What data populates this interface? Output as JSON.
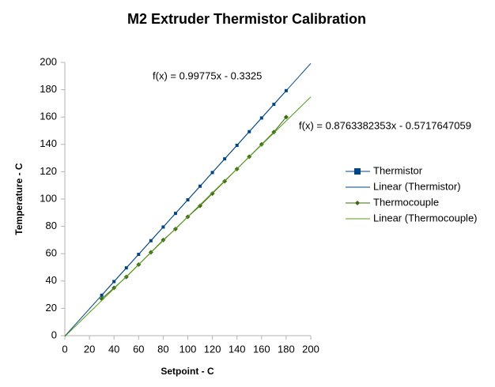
{
  "chart_data": {
    "type": "line",
    "title": "M2 Extruder Thermistor Calibration",
    "x_label": "Setpoint - C",
    "y_label": "Temperature - C",
    "xlim": [
      0,
      200
    ],
    "xticks": [
      0,
      20,
      40,
      60,
      80,
      100,
      120,
      140,
      160,
      180,
      200
    ],
    "ylim": [
      0,
      200
    ],
    "yticks": [
      0,
      20,
      40,
      60,
      80,
      100,
      120,
      140,
      160,
      180,
      200
    ],
    "grid": false,
    "series": [
      {
        "name": "Thermistor",
        "color": "#004586",
        "marker": "square",
        "x": [
          30,
          40,
          50,
          60,
          70,
          80,
          90,
          100,
          110,
          120,
          130,
          140,
          150,
          160,
          170,
          180
        ],
        "values": [
          29.6,
          39.6,
          49.6,
          59.5,
          69.5,
          79.5,
          89.5,
          99.4,
          109.4,
          119.4,
          129.4,
          139.3,
          149.3,
          159.3,
          169.3,
          179.3
        ]
      },
      {
        "name": "Linear (Thermistor)",
        "color": "#004586",
        "marker": "none",
        "x": [
          0,
          200
        ],
        "values": [
          -0.33,
          199.22
        ]
      },
      {
        "name": "Thermocouple",
        "color": "#3b6b0e",
        "marker": "diamond",
        "x": [
          30,
          40,
          50,
          60,
          70,
          80,
          90,
          100,
          110,
          120,
          130,
          140,
          150,
          160,
          170,
          180
        ],
        "values": [
          27,
          35,
          43,
          52,
          61,
          70,
          78,
          87,
          95,
          104,
          113,
          122,
          131,
          140,
          149,
          160
        ]
      },
      {
        "name": "Linear (Thermocouple)",
        "color": "#579d1c",
        "marker": "none",
        "x": [
          0,
          200
        ],
        "values": [
          -0.57,
          174.7
        ]
      }
    ],
    "annotations": [
      "f(x) = 0.99775x - 0.3325",
      "f(x) = 0.8763382353x - 0.5717647059"
    ]
  }
}
